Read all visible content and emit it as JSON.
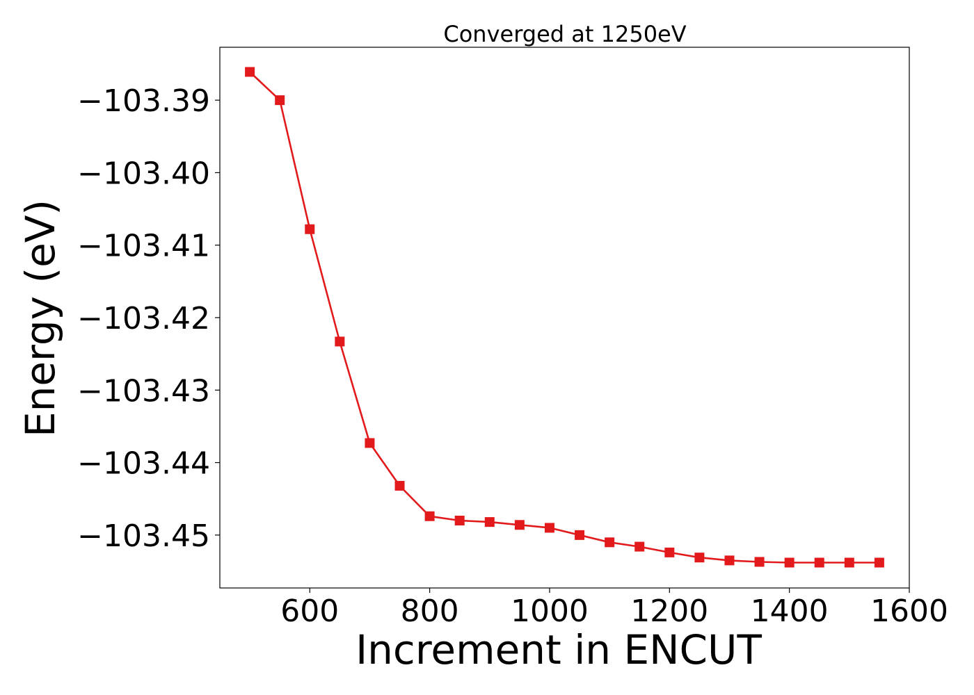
{
  "chart_data": {
    "type": "line",
    "title": "Converged at 1250eV",
    "xlabel": "Increment in ENCUT",
    "ylabel": "Energy (eV)",
    "xlim": [
      450,
      1600
    ],
    "ylim": [
      -103.4573,
      -103.3827
    ],
    "x_ticks": [
      600,
      800,
      1000,
      1200,
      1400,
      1600
    ],
    "x_tick_labels": [
      "600",
      "800",
      "1000",
      "1200",
      "1400",
      "1600"
    ],
    "y_ticks": [
      -103.39,
      -103.4,
      -103.41,
      -103.42,
      -103.43,
      -103.44,
      -103.45
    ],
    "y_tick_labels": [
      "−103.39",
      "−103.40",
      "−103.41",
      "−103.42",
      "−103.43",
      "−103.44",
      "−103.45"
    ],
    "grid": false,
    "series": [
      {
        "color": "#e31a1c",
        "marker": "square",
        "x": [
          500,
          550,
          600,
          650,
          700,
          750,
          800,
          850,
          900,
          950,
          1000,
          1050,
          1100,
          1150,
          1200,
          1250,
          1300,
          1350,
          1400,
          1450,
          1500,
          1550
        ],
        "y": [
          -103.3861,
          -103.39,
          -103.4078,
          -103.4233,
          -103.4373,
          -103.4432,
          -103.4474,
          -103.448,
          -103.4482,
          -103.4486,
          -103.449,
          -103.45,
          -103.451,
          -103.4516,
          -103.4524,
          -103.4531,
          -103.4535,
          -103.4537,
          -103.4538,
          -103.4538,
          -103.4538,
          -103.4538
        ]
      }
    ]
  }
}
